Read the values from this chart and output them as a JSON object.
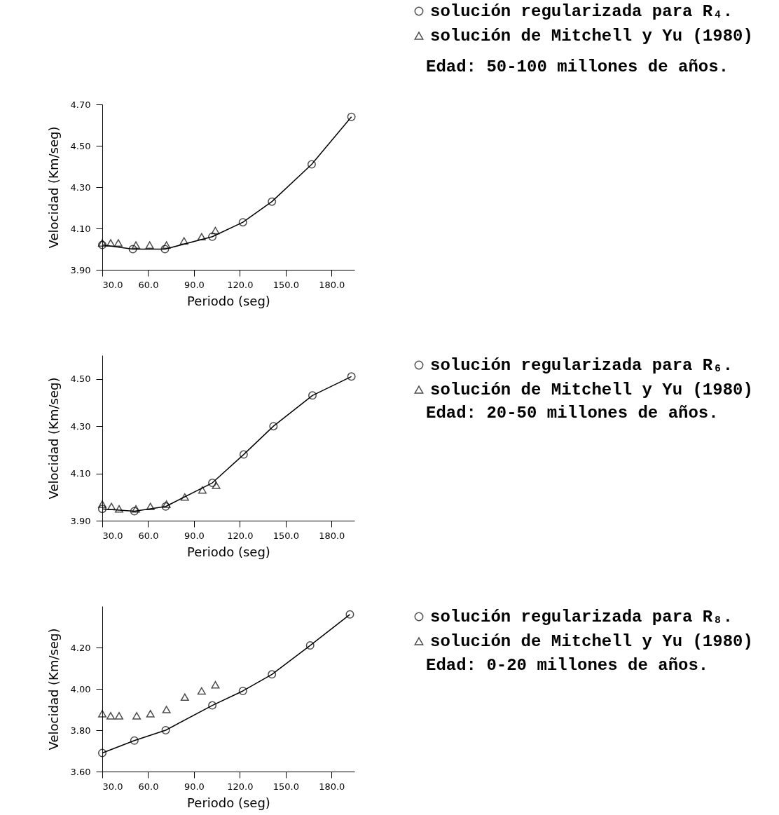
{
  "chart_data": [
    {
      "type": "line",
      "xlabel": "Periodo (seg)",
      "ylabel": "Velocidad (Km/seg)",
      "legend": "top right",
      "annotations": [
        "Edad: 50-100 millones de años."
      ],
      "xlim": [
        30,
        195
      ],
      "xticks": [
        {
          "value": 30,
          "label": "30.0"
        },
        {
          "value": 60,
          "label": "60.0"
        },
        {
          "value": 90,
          "label": "90.0"
        },
        {
          "value": 120,
          "label": "120.0"
        },
        {
          "value": 150,
          "label": "150.0"
        },
        {
          "value": 180,
          "label": "180.0"
        }
      ],
      "ylim": [
        3.9,
        4.7
      ],
      "yticks": [
        {
          "value": 3.9,
          "label": "3.90"
        },
        {
          "value": 4.1,
          "label": "4.10"
        },
        {
          "value": 4.3,
          "label": "4.30"
        },
        {
          "value": 4.5,
          "label": "4.50"
        },
        {
          "value": 4.7,
          "label": "4.70"
        }
      ],
      "series": [
        {
          "name": "solución regularizada para R₄.",
          "marker": "circle",
          "color": "#000000",
          "x": [
            30,
            50,
            71,
            102,
            122,
            141,
            167,
            193
          ],
          "values": [
            4.02,
            4.0,
            4.0,
            4.06,
            4.13,
            4.23,
            4.41,
            4.64
          ]
        },
        {
          "name": "solución de Mitchell y Yu (1980)",
          "type": "scatter",
          "marker": "triangle",
          "color": "#000000",
          "x": [
            30,
            35.5,
            40.5,
            52,
            61,
            72,
            83.5,
            95,
            104
          ],
          "values": [
            4.03,
            4.03,
            4.03,
            4.02,
            4.02,
            4.02,
            4.04,
            4.06,
            4.09
          ]
        }
      ]
    },
    {
      "type": "line",
      "xlabel": "Periodo (seg)",
      "ylabel": "Velocidad (Km/seg)",
      "legend": "top right",
      "annotations": [
        "Edad: 20-50 millones de años."
      ],
      "xlim": [
        30,
        195
      ],
      "xticks": [
        {
          "value": 30,
          "label": "30.0"
        },
        {
          "value": 60,
          "label": "60.0"
        },
        {
          "value": 90,
          "label": "90.0"
        },
        {
          "value": 120,
          "label": "120.0"
        },
        {
          "value": 150,
          "label": "150.0"
        },
        {
          "value": 180,
          "label": "180.0"
        }
      ],
      "ylim": [
        3.9,
        4.6
      ],
      "yticks": [
        {
          "value": 3.9,
          "label": "3.90"
        },
        {
          "value": 4.1,
          "label": "4.10"
        },
        {
          "value": 4.3,
          "label": "4.30"
        },
        {
          "value": 4.5,
          "label": "4.50"
        }
      ],
      "series": [
        {
          "name": "solución regularizada para R₆.",
          "marker": "circle",
          "color": "#000000",
          "x": [
            30,
            51,
            71.5,
            102,
            122.5,
            142,
            167.5,
            193
          ],
          "values": [
            3.95,
            3.94,
            3.96,
            4.06,
            4.18,
            4.3,
            4.43,
            4.51
          ]
        },
        {
          "name": "solución de Mitchell y Yu (1980)",
          "type": "scatter",
          "marker": "triangle",
          "color": "#000000",
          "x": [
            30,
            36,
            41,
            52,
            61.5,
            72,
            84,
            95.5,
            104.5
          ],
          "values": [
            3.97,
            3.96,
            3.95,
            3.95,
            3.96,
            3.97,
            4.0,
            4.03,
            4.05
          ]
        }
      ]
    },
    {
      "type": "line",
      "xlabel": "Periodo (seg)",
      "ylabel": "Velocidad (Km/seg)",
      "legend": "top right",
      "annotations": [
        "Edad: 0-20 millones de años."
      ],
      "xlim": [
        30,
        195
      ],
      "xticks": [
        {
          "value": 30,
          "label": "30.0"
        },
        {
          "value": 60,
          "label": "60.0"
        },
        {
          "value": 90,
          "label": "90.0"
        },
        {
          "value": 120,
          "label": "120.0"
        },
        {
          "value": 150,
          "label": "150.0"
        },
        {
          "value": 180,
          "label": "180.0"
        }
      ],
      "ylim": [
        3.6,
        4.4
      ],
      "yticks": [
        {
          "value": 3.6,
          "label": "3.60"
        },
        {
          "value": 3.8,
          "label": "3.80"
        },
        {
          "value": 4.0,
          "label": "4.00"
        },
        {
          "value": 4.2,
          "label": "4.20"
        }
      ],
      "series": [
        {
          "name": "solución regularizada para R₈.",
          "marker": "circle",
          "color": "#000000",
          "x": [
            30,
            51,
            71.5,
            102,
            122,
            141,
            166,
            192
          ],
          "values": [
            3.69,
            3.75,
            3.8,
            3.92,
            3.99,
            4.07,
            4.21,
            4.36
          ]
        },
        {
          "name": "solución de Mitchell y Yu (1980)",
          "type": "scatter",
          "marker": "triangle",
          "color": "#000000",
          "x": [
            30,
            35.5,
            41,
            52.5,
            61.5,
            72,
            84,
            95,
            104
          ],
          "values": [
            3.88,
            3.87,
            3.87,
            3.87,
            3.88,
            3.9,
            3.96,
            3.99,
            4.02
          ]
        }
      ]
    }
  ]
}
